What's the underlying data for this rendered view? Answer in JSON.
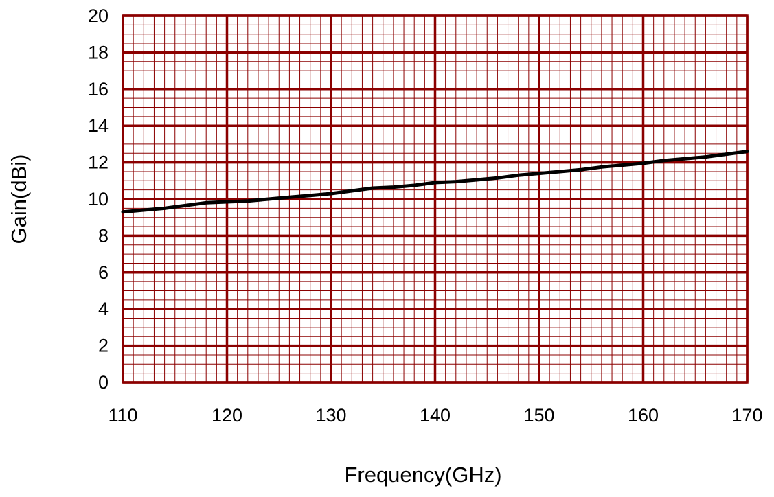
{
  "chart_data": {
    "type": "line",
    "title": "",
    "xlabel": "Frequency(GHz)",
    "ylabel": "Gain(dBi)",
    "xlim": [
      110,
      170
    ],
    "ylim": [
      0,
      20
    ],
    "x_ticks": [
      110,
      120,
      130,
      140,
      150,
      160,
      170
    ],
    "y_ticks": [
      0,
      2,
      4,
      6,
      8,
      10,
      12,
      14,
      16,
      18,
      20
    ],
    "grid": true,
    "legend": "none",
    "colors": {
      "grid": "#8b0000",
      "line": "#000000"
    },
    "series": [
      {
        "x": [
          110,
          112,
          114,
          116,
          118,
          120,
          122,
          124,
          126,
          128,
          130,
          132,
          134,
          136,
          138,
          140,
          142,
          144,
          146,
          148,
          150,
          152,
          154,
          156,
          158,
          160,
          162,
          164,
          166,
          168,
          170
        ],
        "y": [
          9.3,
          9.4,
          9.5,
          9.65,
          9.8,
          9.85,
          9.9,
          10.0,
          10.1,
          10.2,
          10.3,
          10.45,
          10.6,
          10.65,
          10.75,
          10.9,
          10.95,
          11.05,
          11.15,
          11.3,
          11.4,
          11.5,
          11.6,
          11.75,
          11.85,
          11.95,
          12.1,
          12.2,
          12.3,
          12.45,
          12.6
        ]
      }
    ]
  }
}
